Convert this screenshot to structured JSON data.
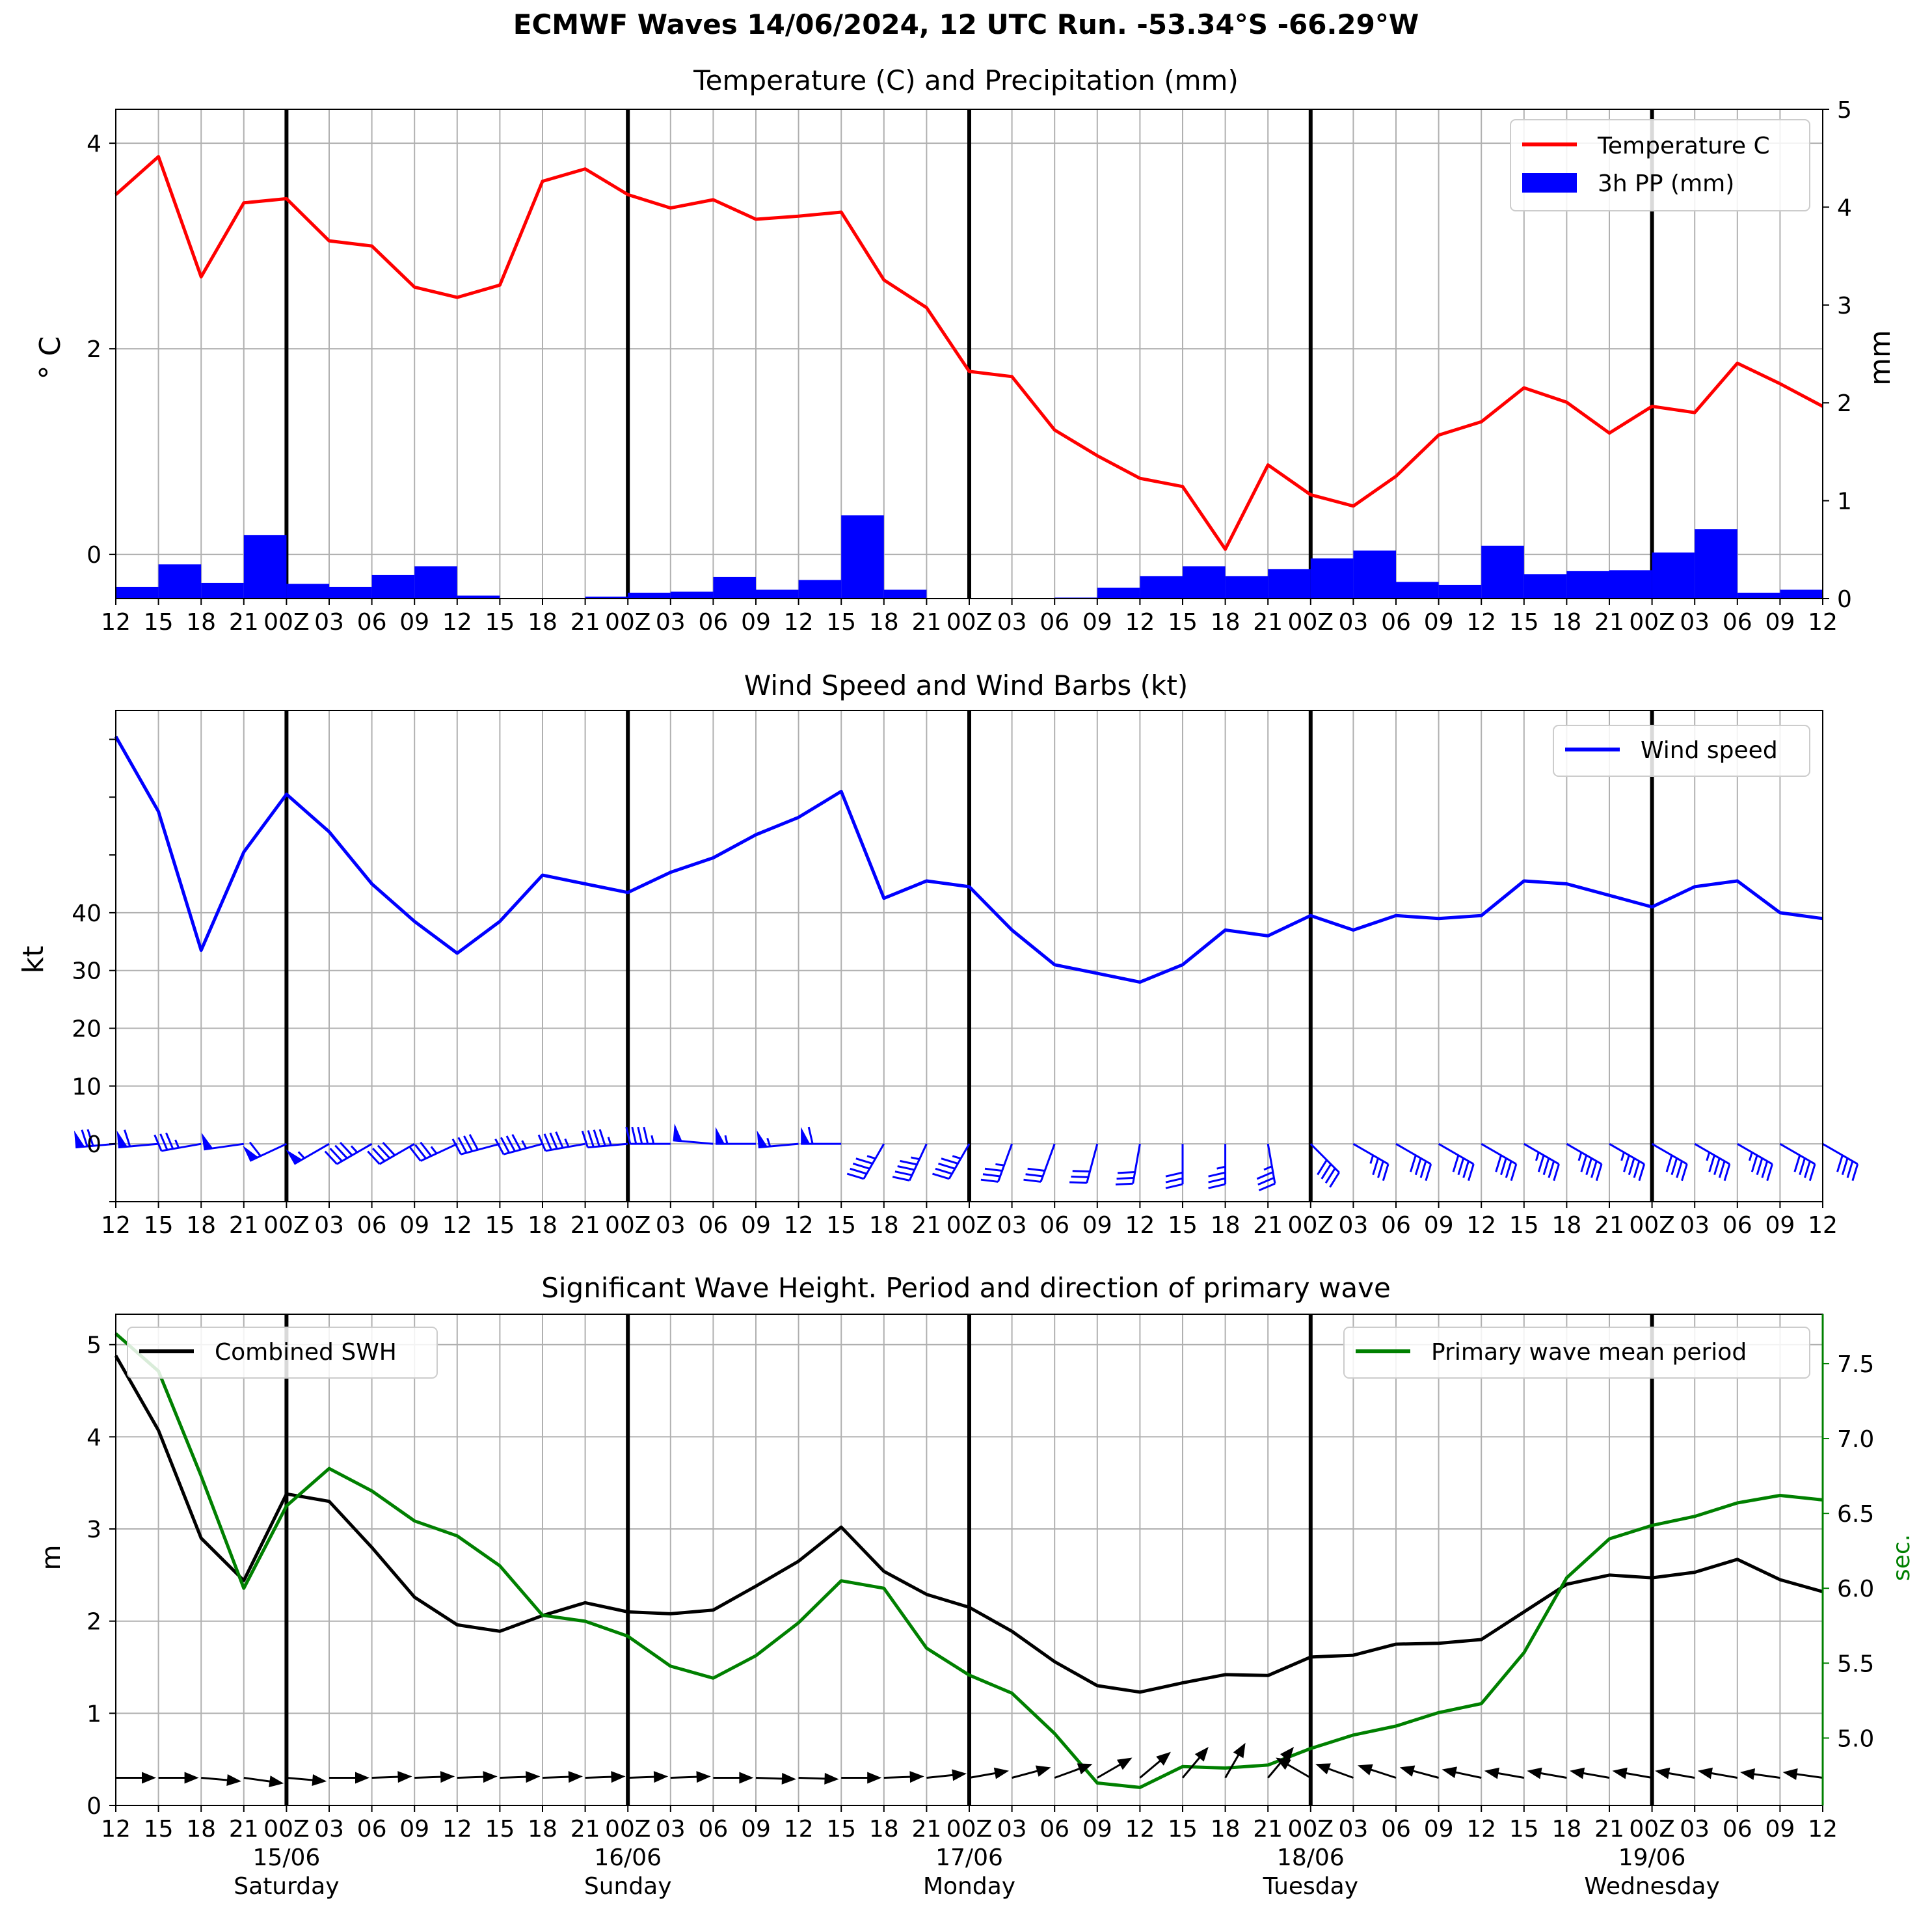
{
  "figure": {
    "suptitle": "ECMWF Waves 14/06/2024, 12 UTC Run. -53.34°S -66.29°W"
  },
  "colors": {
    "temperature": "#ff0000",
    "precip": "#0000ff",
    "wind": "#0000ff",
    "swh": "#000000",
    "period": "#008000",
    "grid": "#b0b0b0",
    "day_line": "#000000"
  },
  "time_axis": {
    "tick_labels": [
      "12",
      "15",
      "18",
      "21",
      "00Z",
      "03",
      "06",
      "09",
      "12",
      "15",
      "18",
      "21",
      "00Z",
      "03",
      "06",
      "09",
      "12",
      "15",
      "18",
      "21",
      "00Z",
      "03",
      "06",
      "09",
      "12",
      "15",
      "18",
      "21",
      "00Z",
      "03",
      "06",
      "09",
      "12",
      "15",
      "18",
      "21",
      "00Z",
      "03",
      "06",
      "09",
      "12"
    ],
    "day_markers": [
      {
        "index": 4,
        "date": "15/06",
        "weekday": "Saturday"
      },
      {
        "index": 12,
        "date": "16/06",
        "weekday": "Sunday"
      },
      {
        "index": 20,
        "date": "17/06",
        "weekday": "Monday"
      },
      {
        "index": 28,
        "date": "18/06",
        "weekday": "Tuesday"
      },
      {
        "index": 36,
        "date": "19/06",
        "weekday": "Wednesday"
      }
    ]
  },
  "chart_data": [
    {
      "type": "line",
      "title": "Temperature (C) and Precipitation (mm)",
      "ylabel": "$^\\circ$C",
      "ylabel_display": "° C",
      "ylabel_right": "mm",
      "ylim": [
        -0.43,
        4.33
      ],
      "yticks": [
        0,
        2,
        4
      ],
      "ylim_right": [
        0,
        5
      ],
      "yticks_right": [
        0,
        1,
        2,
        3,
        4,
        5
      ],
      "grid": true,
      "legend": "top-right",
      "series": [
        {
          "name": "Temperature C",
          "kind": "line",
          "axis": "left",
          "values": [
            3.5,
            3.87,
            2.7,
            3.42,
            3.46,
            3.05,
            3.0,
            2.6,
            2.5,
            2.62,
            3.63,
            3.75,
            3.5,
            3.37,
            3.45,
            3.26,
            3.29,
            3.33,
            2.67,
            2.4,
            1.78,
            1.73,
            1.21,
            0.96,
            0.74,
            0.66,
            0.05,
            0.87,
            0.58,
            0.47,
            0.76,
            1.16,
            1.29,
            1.62,
            1.48,
            1.18,
            1.44,
            1.38,
            1.86,
            1.66,
            1.44
          ]
        },
        {
          "name": "3h PP (mm)",
          "kind": "bar",
          "axis": "right",
          "values": [
            0.12,
            0.35,
            0.16,
            0.65,
            0.15,
            0.12,
            0.24,
            0.33,
            0.03,
            0.0,
            0.0,
            0.02,
            0.06,
            0.07,
            0.22,
            0.09,
            0.19,
            0.85,
            0.09,
            0.0,
            0.0,
            0.0,
            0.01,
            0.11,
            0.23,
            0.33,
            0.23,
            0.3,
            0.41,
            0.49,
            0.17,
            0.14,
            0.54,
            0.25,
            0.28,
            0.29,
            0.47,
            0.71,
            0.06,
            0.09
          ]
        }
      ]
    },
    {
      "type": "line",
      "title": "Wind Speed and Wind Barbs (kt)",
      "ylabel": "kt",
      "ylim": [
        -10,
        75
      ],
      "yticks": [
        0,
        10,
        20,
        30,
        40
      ],
      "grid": true,
      "legend": "top-right",
      "series": [
        {
          "name": "Wind speed",
          "kind": "line",
          "values": [
            70.5,
            57.5,
            33.5,
            50.5,
            60.5,
            54,
            45,
            38.5,
            33,
            38.5,
            46.5,
            45,
            43.5,
            47,
            49.5,
            53.5,
            56.5,
            61,
            42.5,
            45.5,
            44.5,
            37,
            31,
            29.5,
            28,
            31,
            37,
            36,
            39.5,
            37,
            39.5,
            39,
            39.5,
            45.5,
            45,
            43,
            41,
            44.5,
            45.5,
            40,
            39
          ]
        }
      ],
      "barbs": {
        "direction_deg": [
          275,
          275,
          280,
          278,
          295,
          300,
          300,
          300,
          295,
          285,
          285,
          280,
          275,
          270,
          265,
          270,
          275,
          270,
          330,
          335,
          330,
          340,
          340,
          345,
          350,
          0,
          0,
          10,
          45,
          60,
          60,
          60,
          60,
          60,
          60,
          60,
          60,
          60,
          60,
          60,
          60
        ]
      }
    },
    {
      "type": "line",
      "title": "Significant Wave Height. Period and direction of primary wave",
      "ylabel": "m",
      "ylabel_right": "sec.",
      "ylim": [
        0,
        5.33
      ],
      "yticks": [
        0,
        1,
        2,
        3,
        4,
        5
      ],
      "ylim_right": [
        4.55,
        7.83
      ],
      "yticks_right": [
        5.0,
        5.5,
        6.0,
        6.5,
        7.0,
        7.5
      ],
      "grid": true,
      "legend": [
        "top-left",
        "top-right"
      ],
      "series": [
        {
          "name": "Combined SWH",
          "kind": "line",
          "axis": "left",
          "values": [
            4.88,
            4.07,
            2.9,
            2.44,
            3.38,
            3.3,
            2.8,
            2.26,
            1.96,
            1.89,
            2.06,
            2.2,
            2.1,
            2.08,
            2.12,
            2.38,
            2.65,
            3.02,
            2.54,
            2.29,
            2.15,
            1.89,
            1.56,
            1.3,
            1.23,
            1.33,
            1.42,
            1.41,
            1.61,
            1.63,
            1.75,
            1.76,
            1.8,
            2.1,
            2.4,
            2.5,
            2.47,
            2.53,
            2.67,
            2.45,
            2.32
          ]
        },
        {
          "name": "Primary wave mean period",
          "kind": "line",
          "axis": "right",
          "values": [
            7.7,
            7.45,
            6.75,
            6.0,
            6.55,
            6.8,
            6.65,
            6.45,
            6.35,
            6.15,
            5.82,
            5.78,
            5.68,
            5.48,
            5.4,
            5.55,
            5.77,
            6.05,
            6.0,
            5.6,
            5.42,
            5.3,
            5.03,
            4.7,
            4.67,
            4.81,
            4.8,
            4.82,
            4.93,
            5.02,
            5.08,
            5.17,
            5.23,
            5.57,
            6.07,
            6.33,
            6.42,
            6.48,
            6.57,
            6.62,
            6.59
          ]
        }
      ],
      "wave_direction_deg": [
        90,
        90,
        95,
        98,
        95,
        90,
        88,
        88,
        88,
        88,
        88,
        88,
        88,
        88,
        90,
        92,
        92,
        90,
        88,
        84,
        80,
        75,
        70,
        60,
        50,
        40,
        30,
        40,
        300,
        290,
        288,
        285,
        282,
        280,
        280,
        280,
        280,
        280,
        280,
        278,
        278
      ]
    }
  ]
}
